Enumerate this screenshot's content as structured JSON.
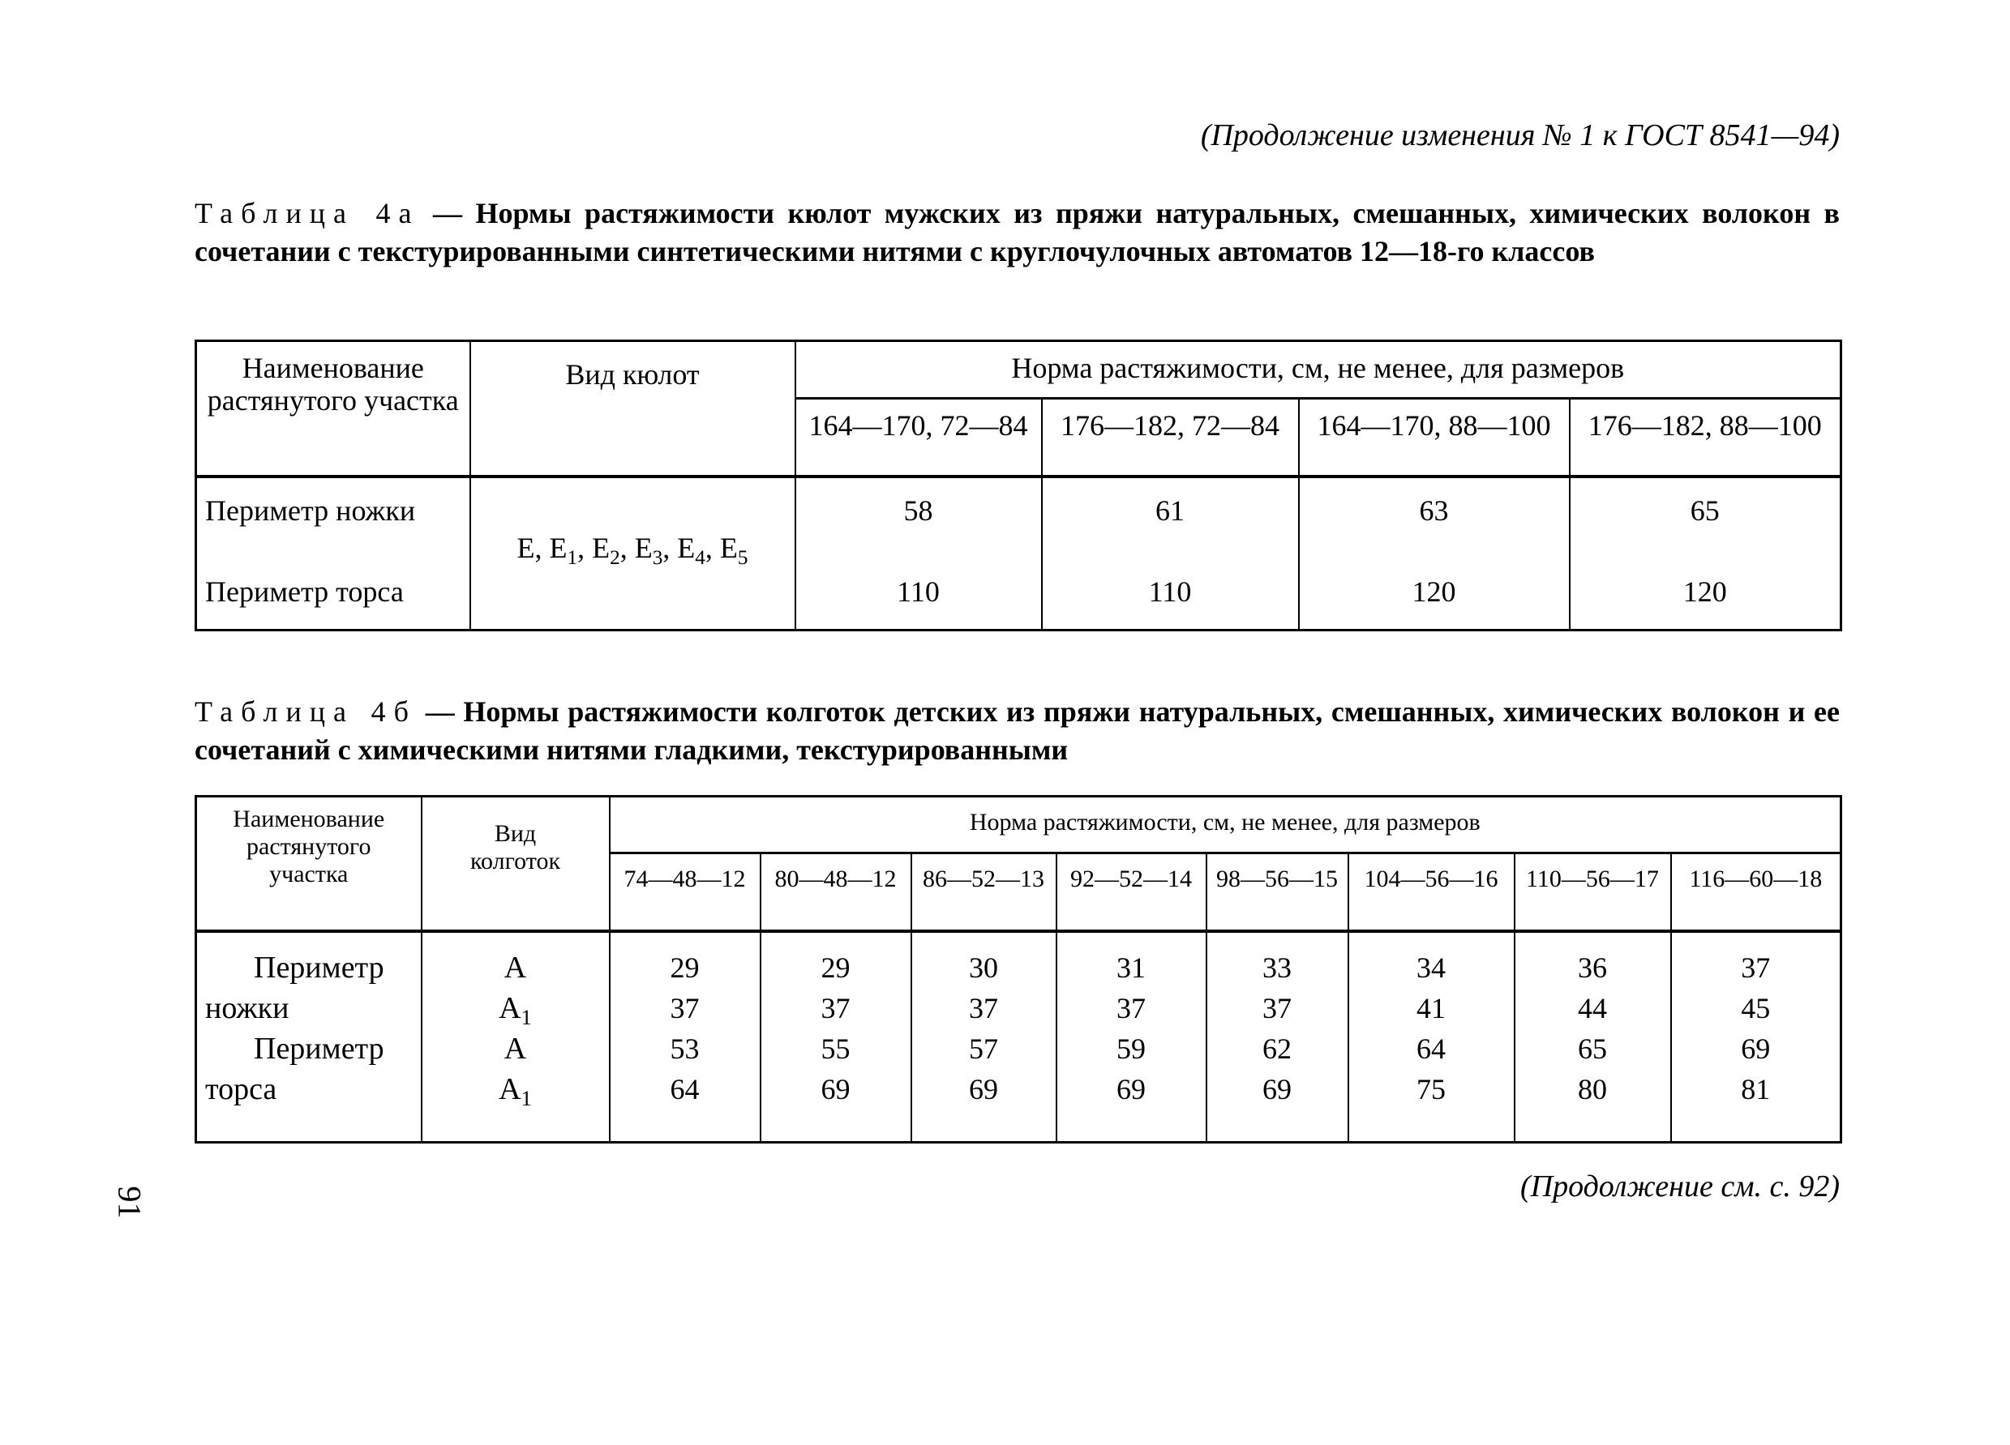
{
  "header": "(Продолжение изменения № 1 к ГОСТ 8541—94)",
  "table_4a": {
    "label": "Таблица 4а",
    "title": "— Нормы растяжимости кюлот мужских из пряжи натуральных, смешанных, химических волокон  в сочетании с текстурированными синтетическими нитями с круглочулочных автоматов 12—18-го классов",
    "col_name": "Наименование растянутого участка",
    "col_type": "Вид кюлот",
    "col_norm": "Норма растяжимости, см, не менее, для размеров",
    "sizes": [
      "164—170, 72—84",
      "176—182, 72—84",
      "164—170, 88—100",
      "176—182, 88—100"
    ],
    "type_value": {
      "base": "E",
      "subs": [
        "1",
        "2",
        "3",
        "4",
        "5"
      ]
    },
    "rows": [
      {
        "name": "Периметр ножки",
        "values": [
          "58",
          "61",
          "63",
          "65"
        ]
      },
      {
        "name": "Периметр торса",
        "values": [
          "110",
          "110",
          "120",
          "120"
        ]
      }
    ]
  },
  "table_4b": {
    "label": "Таблица 4б",
    "title": "— Нормы растяжимости колготок детских из пряжи натуральных, смешанных, химических волокон и ее сочетаний с химическими нитями гладкими, текстурированными",
    "col_name": "Наименование растянутого участка",
    "col_type": "Вид колготок",
    "col_norm": "Норма растяжимости, см, не менее, для размеров",
    "sizes": [
      "74—48—12",
      "80—48—12",
      "86—52—13",
      "92—52—14",
      "98—56—15",
      "104—56—16",
      "110—56—17",
      "116—60—18"
    ],
    "names": [
      "Периметр ножки",
      "Периметр торса"
    ],
    "types": [
      {
        "base": "A",
        "sub": ""
      },
      {
        "base": "A",
        "sub": "1"
      },
      {
        "base": "A",
        "sub": ""
      },
      {
        "base": "A",
        "sub": "1"
      }
    ],
    "values": [
      [
        "29",
        "29",
        "30",
        "31",
        "33",
        "34",
        "36",
        "37"
      ],
      [
        "37",
        "37",
        "37",
        "37",
        "37",
        "41",
        "44",
        "45"
      ],
      [
        "53",
        "55",
        "57",
        "59",
        "62",
        "64",
        "65",
        "69"
      ],
      [
        "64",
        "69",
        "69",
        "69",
        "69",
        "75",
        "80",
        "81"
      ]
    ]
  },
  "footer": "(Продолжение см. с. 92)",
  "page_number": "91"
}
